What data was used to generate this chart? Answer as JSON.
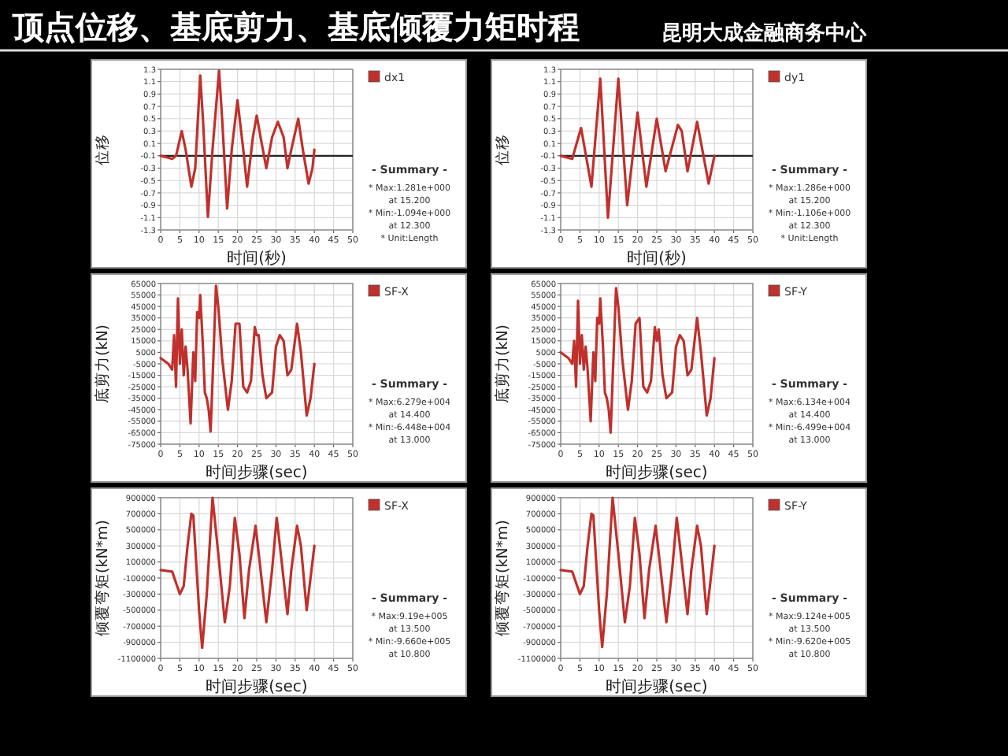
{
  "chart_data": [
    {
      "type": "line",
      "title": "顶点位移、基底剪力、基底倾覆力矩时程",
      "xlabel": "时间(秒)",
      "ylabel": "位移",
      "x": [
        0,
        2,
        3,
        4,
        5.5,
        6.5,
        8,
        9,
        10.3,
        11,
        12.3,
        13.5,
        15.2,
        16,
        17.3,
        18.5,
        20,
        21.5,
        22.5,
        24,
        25,
        26,
        27.5,
        29,
        30.5,
        32,
        33,
        34,
        35.8,
        37,
        38.5,
        39.5,
        40
      ],
      "series": [
        {
          "name": "dx1",
          "color": "#c0302c",
          "values": [
            -0.1,
            -0.13,
            -0.15,
            -0.1,
            0.3,
            0.0,
            -0.6,
            -0.3,
            1.2,
            0.5,
            -1.09,
            0.0,
            1.28,
            0.5,
            -0.95,
            0.0,
            0.8,
            0.0,
            -0.6,
            0.2,
            0.55,
            0.2,
            -0.3,
            0.2,
            0.45,
            0.2,
            -0.3,
            0.0,
            0.5,
            0.0,
            -0.55,
            -0.3,
            0.0
          ]
        }
      ],
      "xlim": [
        0,
        50
      ],
      "ylim": [
        -1.3,
        1.3
      ],
      "xticks": [
        0,
        5,
        10,
        15,
        20,
        25,
        30,
        35,
        40,
        45,
        50
      ],
      "yticks": [
        -1.3,
        -1.1,
        -0.9,
        -0.7,
        -0.5,
        -0.3,
        -0.1,
        0.1,
        0.3,
        0.5,
        0.7,
        0.9,
        1.1,
        1.3
      ],
      "grid": true,
      "legend": "top right",
      "ref_lines": [
        {
          "axis": "y",
          "value": -0.1,
          "color": "#222222"
        }
      ],
      "annotations": [
        "- Summary -",
        "* Max:1.281e+000",
        "at 15.200",
        "* Min:-1.094e+000",
        "at 12.300",
        "* Unit:Length"
      ]
    },
    {
      "type": "line",
      "title": "昆明大成金融商务中心",
      "xlabel": "时间(秒)",
      "ylabel": "位移",
      "x": [
        0,
        3,
        5.3,
        6.3,
        8,
        10.3,
        12.3,
        15,
        17.3,
        20,
        22.3,
        25,
        27.3,
        30.5,
        31.5,
        33,
        35.5,
        38.5,
        40
      ],
      "series": [
        {
          "name": "dy1",
          "color": "#c0302c",
          "values": [
            -0.1,
            -0.15,
            0.35,
            0.0,
            -0.6,
            1.15,
            -1.1,
            1.15,
            -0.9,
            0.6,
            -0.6,
            0.5,
            -0.35,
            0.4,
            0.3,
            -0.35,
            0.45,
            -0.55,
            -0.1
          ]
        }
      ],
      "xlim": [
        0,
        50
      ],
      "ylim": [
        -1.3,
        1.3
      ],
      "xticks": [
        0,
        5,
        10,
        15,
        20,
        25,
        30,
        35,
        40,
        45,
        50
      ],
      "yticks": [
        -1.3,
        -1.1,
        -0.9,
        -0.7,
        -0.5,
        -0.3,
        -0.1,
        0.1,
        0.3,
        0.5,
        0.7,
        0.9,
        1.1,
        1.3
      ],
      "grid": true,
      "legend": "top right",
      "ref_lines": [
        {
          "axis": "y",
          "value": -0.1,
          "color": "#222222"
        }
      ],
      "annotations": [
        "- Summary -",
        "* Max:1.286e+000",
        "at 15.200",
        "* Min:-1.106e+000",
        "at 12.300",
        "* Unit:Length"
      ]
    },
    {
      "type": "line",
      "xlabel": "时间步骤(sec)",
      "ylabel": "底剪力(kN)",
      "x": [
        0,
        2,
        3,
        3.5,
        4,
        4.5,
        5,
        5.5,
        6,
        6.5,
        7,
        7.8,
        8.5,
        9,
        9.5,
        10,
        10.3,
        11,
        11.5,
        12,
        12.5,
        13,
        13.5,
        14.4,
        15,
        16,
        17.5,
        18.5,
        19.5,
        20.5,
        21.5,
        22.5,
        23.5,
        24.5,
        25,
        25.5,
        26.5,
        27.5,
        29,
        30,
        31,
        32,
        33,
        34,
        35.5,
        36.5,
        38,
        39,
        40
      ],
      "series": [
        {
          "name": "SF-X",
          "color": "#c0302c",
          "values": [
            0,
            -5000,
            -10000,
            20000,
            -25000,
            52000,
            -5000,
            25000,
            -15000,
            10000,
            -10000,
            -57000,
            5000,
            -20000,
            40000,
            35000,
            55000,
            10000,
            -30000,
            -35000,
            -45000,
            -64000,
            -20000,
            63000,
            45000,
            0,
            -45000,
            -20000,
            30000,
            30000,
            -25000,
            -30000,
            -20000,
            27000,
            20000,
            20000,
            -15000,
            -35000,
            -30000,
            10000,
            20000,
            15000,
            -15000,
            -10000,
            30000,
            5000,
            -50000,
            -35000,
            -5000
          ]
        }
      ],
      "xlim": [
        0,
        50
      ],
      "ylim": [
        -75000,
        65000
      ],
      "xticks": [
        0,
        5,
        10,
        15,
        20,
        25,
        30,
        35,
        40,
        45,
        50
      ],
      "yticks": [
        -75000,
        -65000,
        -55000,
        -45000,
        -35000,
        -25000,
        -15000,
        -5000,
        5000,
        15000,
        25000,
        35000,
        45000,
        55000,
        65000
      ],
      "grid": true,
      "legend": "top right",
      "annotations": [
        "- Summary -",
        "* Max:6.279e+004",
        "at 14.400",
        "* Min:-6.448e+004",
        "at 13.000"
      ]
    },
    {
      "type": "line",
      "xlabel": "时间步骤(sec)",
      "ylabel": "底剪力(kN)",
      "x": [
        0,
        2,
        3,
        3.5,
        4,
        4.5,
        5,
        5.5,
        6,
        6.5,
        7,
        7.8,
        8.5,
        9,
        9.5,
        10,
        10.3,
        11,
        11.5,
        12,
        12.5,
        13,
        13.5,
        14.4,
        15,
        16,
        17.5,
        18.5,
        19.5,
        20.5,
        21.5,
        22.5,
        23.5,
        24.5,
        25,
        25.5,
        26.5,
        27.5,
        29,
        30,
        31,
        32,
        33,
        34,
        35.5,
        36.5,
        38,
        39,
        40
      ],
      "series": [
        {
          "name": "SF-Y",
          "color": "#c0302c",
          "values": [
            5000,
            0,
            -5000,
            15000,
            -25000,
            50000,
            -5000,
            20000,
            -10000,
            10000,
            -10000,
            -55000,
            5000,
            -20000,
            35000,
            30000,
            52000,
            10000,
            -30000,
            -35000,
            -45000,
            -65000,
            -20000,
            61000,
            45000,
            0,
            -45000,
            -20000,
            30000,
            35000,
            -25000,
            -30000,
            -20000,
            27000,
            15000,
            25000,
            -15000,
            -35000,
            -30000,
            10000,
            20000,
            15000,
            -15000,
            -10000,
            35000,
            5000,
            -50000,
            -35000,
            0
          ]
        }
      ],
      "xlim": [
        0,
        50
      ],
      "ylim": [
        -75000,
        65000
      ],
      "xticks": [
        0,
        5,
        10,
        15,
        20,
        25,
        30,
        35,
        40,
        45,
        50
      ],
      "yticks": [
        -75000,
        -65000,
        -55000,
        -45000,
        -35000,
        -25000,
        -15000,
        -5000,
        5000,
        15000,
        25000,
        35000,
        45000,
        55000,
        65000
      ],
      "grid": true,
      "legend": "top right",
      "annotations": [
        "- Summary -",
        "* Max:6.134e+004",
        "at 14.400",
        "* Min:-6.499e+004",
        "at 13.000"
      ]
    },
    {
      "type": "line",
      "xlabel": "时间步骤(sec)",
      "ylabel": "倾覆弯矩(kN*m)",
      "x": [
        0,
        3,
        5,
        6,
        7,
        8,
        8.5,
        10,
        10.8,
        12,
        13.5,
        15,
        16.7,
        18,
        19.3,
        20.5,
        21.8,
        23,
        24.7,
        26,
        27.5,
        29,
        30.2,
        31.5,
        33,
        34,
        35.5,
        36.5,
        38,
        40
      ],
      "series": [
        {
          "name": "SF-X",
          "color": "#c0302c",
          "values": [
            0,
            -20000,
            -300000,
            -200000,
            300000,
            700000,
            680000,
            -500000,
            -970000,
            -300000,
            900000,
            200000,
            -650000,
            -200000,
            650000,
            200000,
            -600000,
            0,
            550000,
            0,
            -650000,
            0,
            650000,
            100000,
            -550000,
            0,
            550000,
            300000,
            -500000,
            300000
          ]
        }
      ],
      "xlim": [
        0,
        50
      ],
      "ylim": [
        -1100000,
        900000
      ],
      "xticks": [
        0,
        5,
        10,
        15,
        20,
        25,
        30,
        35,
        40,
        45,
        50
      ],
      "yticks": [
        -1100000,
        -900000,
        -700000,
        -500000,
        -300000,
        -100000,
        100000,
        300000,
        500000,
        700000,
        900000
      ],
      "grid": true,
      "legend": "top right",
      "annotations": [
        "- Summary -",
        "* Max:9.19e+005",
        "at 13.500",
        "* Min:-9.660e+005",
        "at 10.800"
      ]
    },
    {
      "type": "line",
      "xlabel": "时间步骤(sec)",
      "ylabel": "倾覆弯矩(kN*m)",
      "x": [
        0,
        3,
        5,
        6,
        7,
        8,
        8.5,
        10,
        10.8,
        12,
        13.5,
        15,
        16.7,
        18,
        19.3,
        20.5,
        21.8,
        23,
        24.7,
        26,
        27.5,
        29,
        30.2,
        31.5,
        33,
        34,
        35.5,
        36.5,
        38,
        40
      ],
      "series": [
        {
          "name": "SF-Y",
          "color": "#c0302c",
          "values": [
            0,
            -20000,
            -300000,
            -200000,
            300000,
            700000,
            680000,
            -500000,
            -960000,
            -300000,
            900000,
            200000,
            -650000,
            -200000,
            650000,
            200000,
            -600000,
            0,
            550000,
            0,
            -650000,
            0,
            650000,
            100000,
            -550000,
            0,
            550000,
            300000,
            -550000,
            300000
          ]
        }
      ],
      "xlim": [
        0,
        50
      ],
      "ylim": [
        -1100000,
        900000
      ],
      "xticks": [
        0,
        5,
        10,
        15,
        20,
        25,
        30,
        35,
        40,
        45,
        50
      ],
      "yticks": [
        -1100000,
        -900000,
        -700000,
        -500000,
        -300000,
        -100000,
        100000,
        300000,
        500000,
        700000,
        900000
      ],
      "grid": true,
      "legend": "top right",
      "annotations": [
        "- Summary -",
        "* Max:9.124e+005",
        "at 13.500",
        "* Min:-9.620e+005",
        "at 10.800"
      ]
    }
  ]
}
